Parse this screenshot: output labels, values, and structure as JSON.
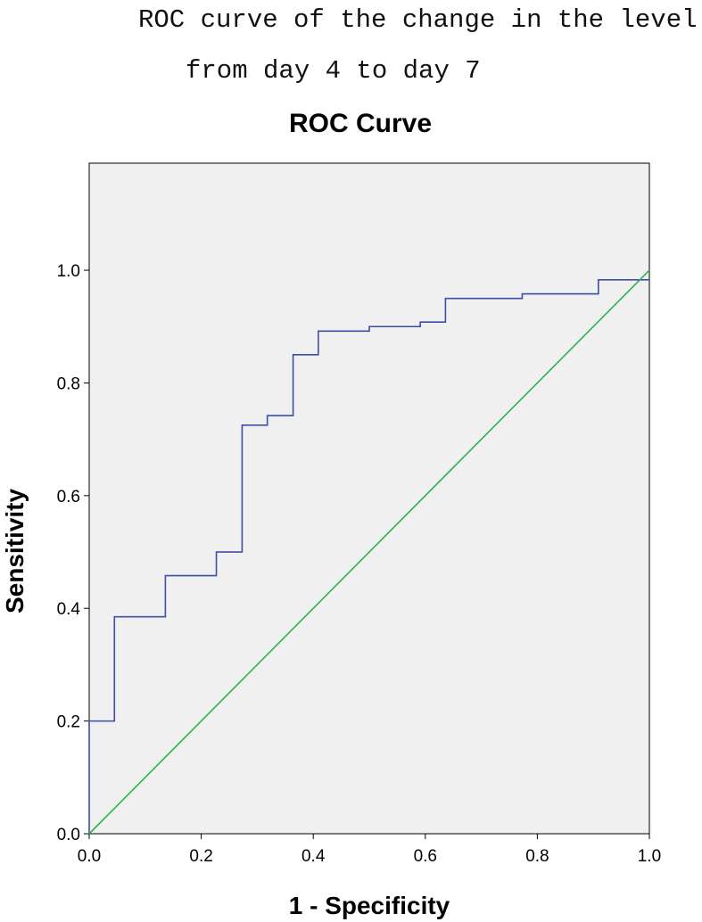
{
  "caption": {
    "lines": [
      "ROC curve of the change in the level",
      "from day 4 to day 7"
    ]
  },
  "chart_data": {
    "type": "line",
    "title": "ROC Curve",
    "x_label": "1 - Specificity",
    "y_label": "Sensitivity",
    "xlim": [
      0,
      1
    ],
    "ylim": [
      0,
      1.19
    ],
    "xticks": [
      {
        "value": 0,
        "label": "0.0"
      },
      0.2,
      0.4,
      0.6,
      0.8,
      {
        "value": 1,
        "label": "1.0"
      }
    ],
    "yticks": [
      {
        "value": 0,
        "label": "0.0"
      },
      0.2,
      0.4,
      0.6,
      0.8,
      {
        "value": 1,
        "label": "1.0"
      }
    ],
    "background": "#f0f0f0",
    "series": [
      {
        "color": "#3c4fa8",
        "x": [
          0,
          0,
          0.045,
          0.045,
          0.136,
          0.136,
          0.227,
          0.227,
          0.273,
          0.273,
          0.318,
          0.318,
          0.364,
          0.364,
          0.409,
          0.409,
          0.5,
          0.5,
          0.591,
          0.591,
          0.636,
          0.636,
          0.773,
          0.773,
          0.909,
          0.909,
          1
        ],
        "values": [
          0,
          0.2,
          0.2,
          0.385,
          0.385,
          0.458,
          0.458,
          0.5,
          0.5,
          0.725,
          0.725,
          0.742,
          0.742,
          0.85,
          0.85,
          0.892,
          0.892,
          0.9,
          0.9,
          0.908,
          0.908,
          0.95,
          0.95,
          0.958,
          0.958,
          0.983,
          0.983
        ]
      },
      {
        "color": "#2db34a",
        "x": [
          0,
          1
        ],
        "values": [
          0,
          1
        ]
      }
    ]
  }
}
